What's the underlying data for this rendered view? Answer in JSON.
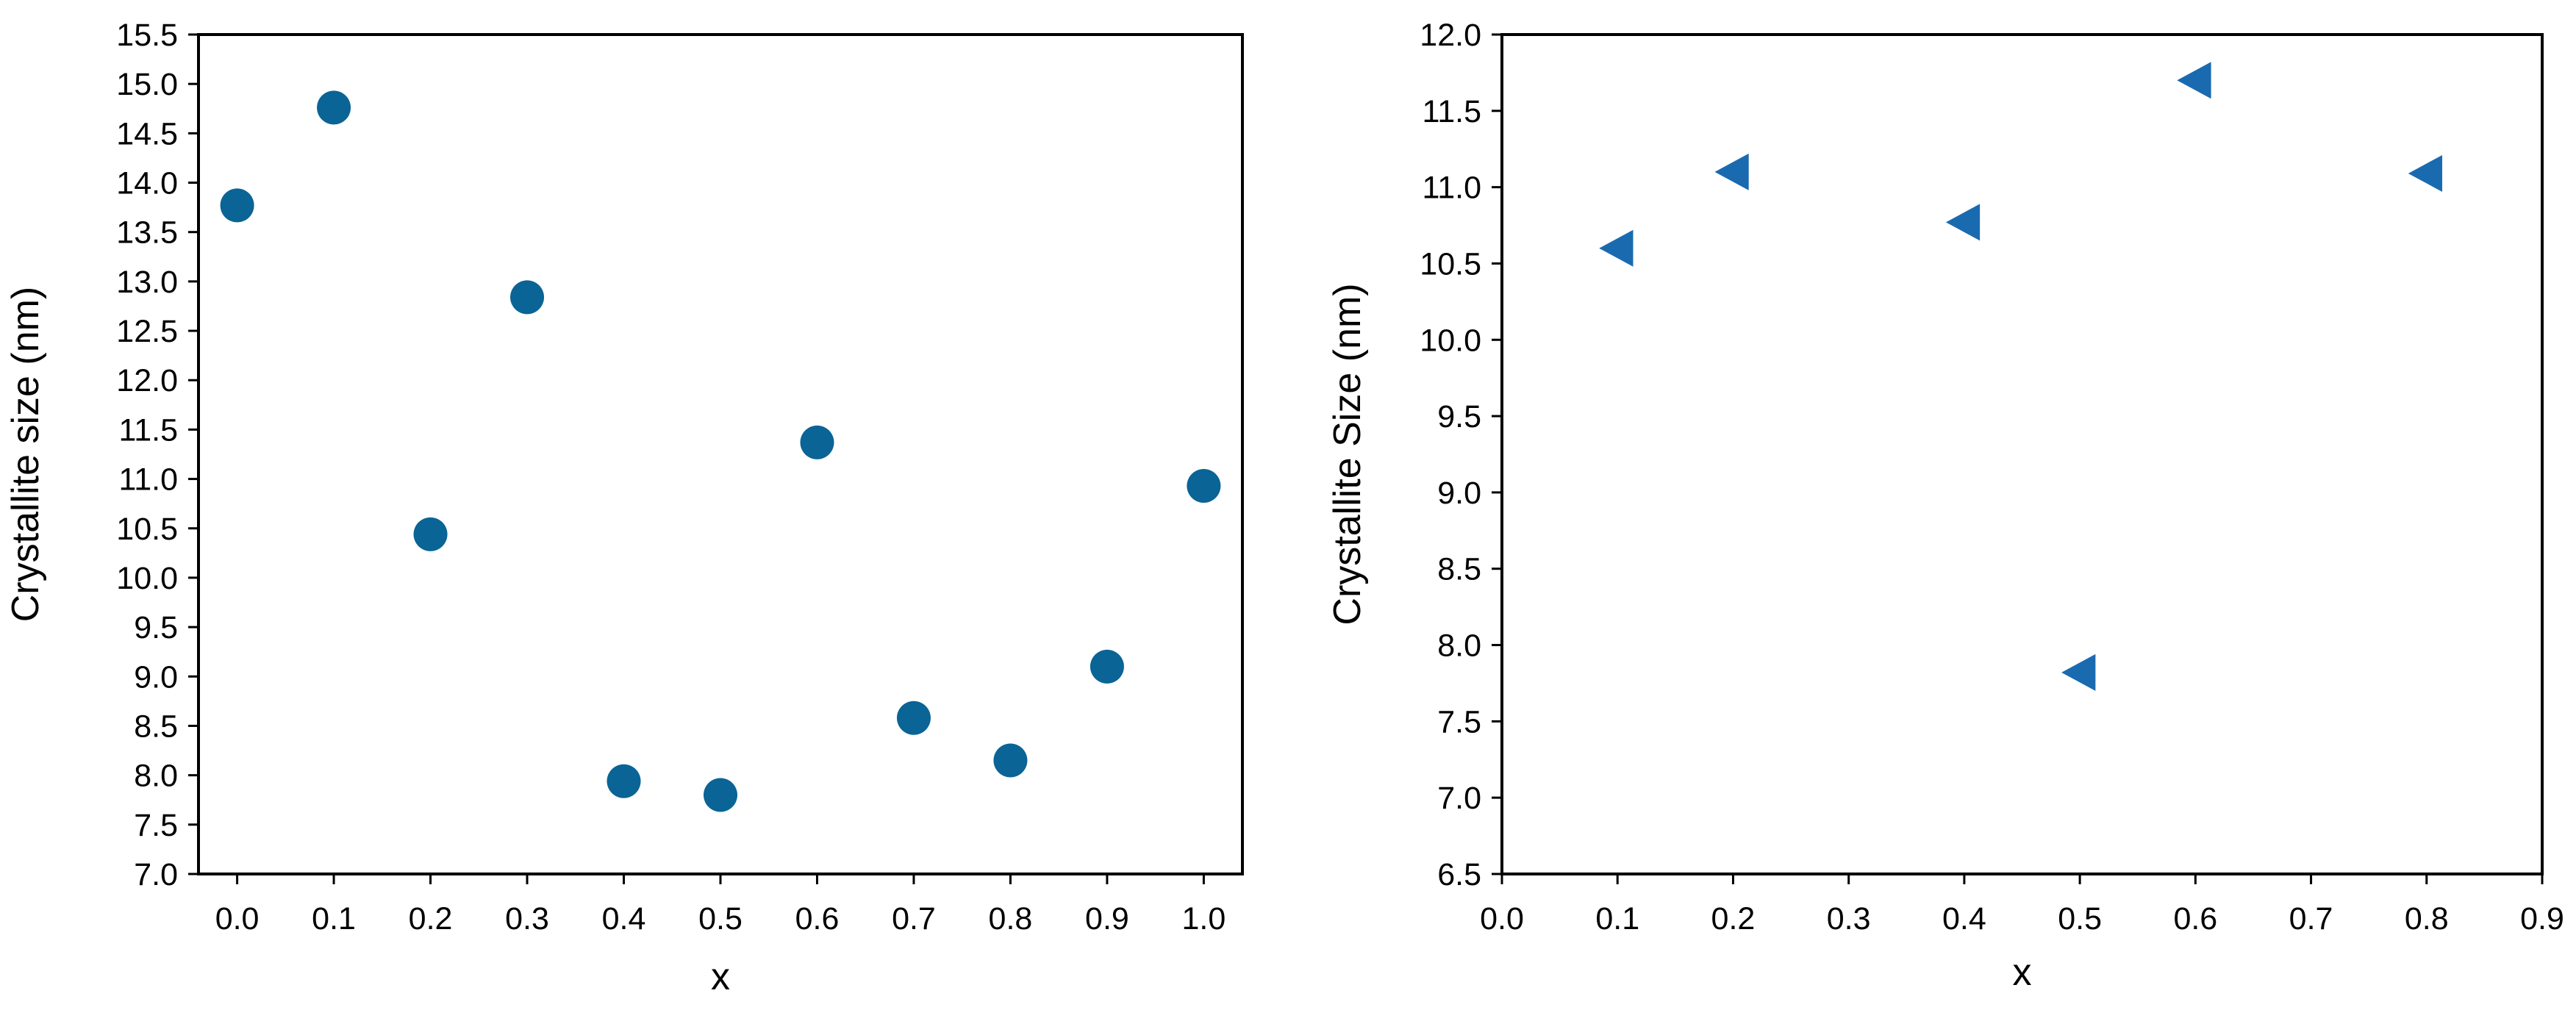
{
  "chart_data": [
    {
      "type": "scatter",
      "xlabel": "x",
      "ylabel": "Crystallite size (nm)",
      "xlim": [
        -0.04,
        1.04
      ],
      "ylim": [
        7.0,
        15.5
      ],
      "xticks": [
        "0.0",
        "0.1",
        "0.2",
        "0.3",
        "0.4",
        "0.5",
        "0.6",
        "0.7",
        "0.8",
        "0.9",
        "1.0"
      ],
      "yticks": [
        "7.0",
        "7.5",
        "8.0",
        "8.5",
        "9.0",
        "9.5",
        "10.0",
        "10.5",
        "11.0",
        "11.5",
        "12.0",
        "12.5",
        "13.0",
        "13.5",
        "14.0",
        "14.5",
        "15.0",
        "15.5"
      ],
      "marker": "circle",
      "color": "#0a6496",
      "grid": false,
      "series": [
        {
          "x": [
            0.0,
            0.1,
            0.2,
            0.3,
            0.4,
            0.5,
            0.6,
            0.7,
            0.8,
            0.9,
            1.0
          ],
          "y": [
            13.77,
            14.76,
            10.44,
            12.84,
            7.94,
            7.8,
            11.37,
            8.58,
            8.15,
            9.1,
            10.93
          ]
        }
      ]
    },
    {
      "type": "scatter",
      "xlabel": "x",
      "ylabel": "Crystallite Size (nm)",
      "xlim": [
        0.0,
        0.9
      ],
      "ylim": [
        6.5,
        12.0
      ],
      "xticks": [
        "0.0",
        "0.1",
        "0.2",
        "0.3",
        "0.4",
        "0.5",
        "0.6",
        "0.7",
        "0.8",
        "0.9"
      ],
      "yticks": [
        "6.5",
        "7.0",
        "7.5",
        "8.0",
        "8.5",
        "9.0",
        "9.5",
        "10.0",
        "10.5",
        "11.0",
        "11.5",
        "12.0"
      ],
      "marker": "triangle-left",
      "color": "#1a6ab0",
      "grid": false,
      "series": [
        {
          "x": [
            0.1,
            0.2,
            0.4,
            0.5,
            0.6,
            0.8
          ],
          "y": [
            10.6,
            11.1,
            10.77,
            7.82,
            11.7,
            11.09
          ]
        }
      ]
    }
  ]
}
